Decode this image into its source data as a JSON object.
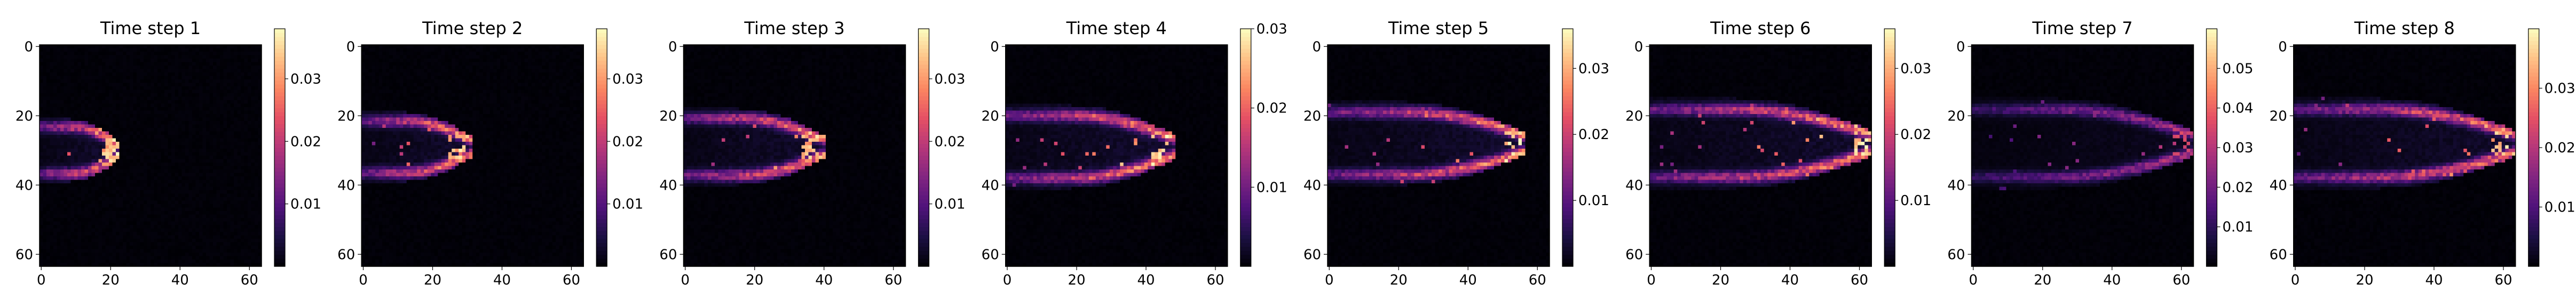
{
  "figure": {
    "background": "#ffffff",
    "colormap": "magma"
  },
  "chart_data": [
    {
      "type": "heatmap",
      "title": "Time step 1",
      "grid_size": [
        64,
        64
      ],
      "xlim": [
        0,
        63
      ],
      "ylim": [
        63,
        0
      ],
      "xticks": [
        "0",
        "20",
        "40",
        "60"
      ],
      "yticks": [
        "0",
        "20",
        "40",
        "60"
      ],
      "colorbar_range": [
        0,
        0.038
      ],
      "colorbar_ticks": [
        "0.01",
        "0.02",
        "0.03"
      ],
      "colorbar_tick_values": [
        0.01,
        0.02,
        0.03
      ],
      "plume": {
        "center_row": 30,
        "tip_col": 22,
        "half_width": 8,
        "peak": 0.036,
        "peak_col": 20
      },
      "grid": false,
      "legend": "none"
    },
    {
      "type": "heatmap",
      "title": "Time step 2",
      "grid_size": [
        64,
        64
      ],
      "xlim": [
        0,
        63
      ],
      "ylim": [
        63,
        0
      ],
      "xticks": [
        "0",
        "20",
        "40",
        "60"
      ],
      "yticks": [
        "0",
        "20",
        "40",
        "60"
      ],
      "colorbar_range": [
        0,
        0.038
      ],
      "colorbar_ticks": [
        "0.01",
        "0.02",
        "0.03"
      ],
      "colorbar_tick_values": [
        0.01,
        0.02,
        0.03
      ],
      "plume": {
        "center_row": 29,
        "tip_col": 31,
        "half_width": 9,
        "peak": 0.036,
        "peak_col": 27
      },
      "grid": false,
      "legend": "none"
    },
    {
      "type": "heatmap",
      "title": "Time step 3",
      "grid_size": [
        64,
        64
      ],
      "xlim": [
        0,
        63
      ],
      "ylim": [
        63,
        0
      ],
      "xticks": [
        "0",
        "20",
        "40",
        "60"
      ],
      "yticks": [
        "0",
        "20",
        "40",
        "60"
      ],
      "colorbar_range": [
        0,
        0.038
      ],
      "colorbar_ticks": [
        "0.01",
        "0.02",
        "0.03"
      ],
      "colorbar_tick_values": [
        0.01,
        0.02,
        0.03
      ],
      "plume": {
        "center_row": 29,
        "tip_col": 40,
        "half_width": 10,
        "peak": 0.036,
        "peak_col": 36
      },
      "grid": false,
      "legend": "none"
    },
    {
      "type": "heatmap",
      "title": "Time step 4",
      "grid_size": [
        64,
        64
      ],
      "xlim": [
        0,
        63
      ],
      "ylim": [
        63,
        0
      ],
      "xticks": [
        "0",
        "20",
        "40",
        "60"
      ],
      "yticks": [
        "0",
        "20",
        "40",
        "60"
      ],
      "colorbar_range": [
        0,
        0.03
      ],
      "colorbar_ticks": [
        "0.01",
        "0.02",
        "0.03"
      ],
      "colorbar_tick_values": [
        0.01,
        0.02,
        0.03
      ],
      "plume": {
        "center_row": 29,
        "tip_col": 48,
        "half_width": 11,
        "peak": 0.03,
        "peak_col": 44
      },
      "grid": false,
      "legend": "none"
    },
    {
      "type": "heatmap",
      "title": "Time step 5",
      "grid_size": [
        64,
        64
      ],
      "xlim": [
        0,
        63
      ],
      "ylim": [
        63,
        0
      ],
      "xticks": [
        "0",
        "20",
        "40",
        "60"
      ],
      "yticks": [
        "0",
        "20",
        "40",
        "60"
      ],
      "colorbar_range": [
        0,
        0.036
      ],
      "colorbar_ticks": [
        "0.01",
        "0.02",
        "0.03"
      ],
      "colorbar_tick_values": [
        0.01,
        0.02,
        0.03
      ],
      "plume": {
        "center_row": 28,
        "tip_col": 56,
        "half_width": 11,
        "peak": 0.034,
        "peak_col": 53
      },
      "grid": false,
      "legend": "none"
    },
    {
      "type": "heatmap",
      "title": "Time step 6",
      "grid_size": [
        64,
        64
      ],
      "xlim": [
        0,
        63
      ],
      "ylim": [
        63,
        0
      ],
      "xticks": [
        "0",
        "20",
        "40",
        "60"
      ],
      "yticks": [
        "0",
        "20",
        "40",
        "60"
      ],
      "colorbar_range": [
        0,
        0.036
      ],
      "colorbar_ticks": [
        "0.01",
        "0.02",
        "0.03"
      ],
      "colorbar_tick_values": [
        0.01,
        0.02,
        0.03
      ],
      "plume": {
        "center_row": 28,
        "tip_col": 63,
        "half_width": 12,
        "peak": 0.034,
        "peak_col": 61
      },
      "grid": false,
      "legend": "none"
    },
    {
      "type": "heatmap",
      "title": "Time step 7",
      "grid_size": [
        64,
        64
      ],
      "xlim": [
        0,
        63
      ],
      "ylim": [
        63,
        0
      ],
      "xticks": [
        "0",
        "20",
        "40",
        "60"
      ],
      "yticks": [
        "0",
        "20",
        "40",
        "60"
      ],
      "colorbar_range": [
        0,
        0.06
      ],
      "colorbar_ticks": [
        "0.01",
        "0.02",
        "0.03",
        "0.04",
        "0.05"
      ],
      "colorbar_tick_values": [
        0.01,
        0.02,
        0.03,
        0.04,
        0.05
      ],
      "plume": {
        "center_row": 28,
        "tip_col": 63,
        "half_width": 12,
        "peak": 0.035,
        "peak_col": 60
      },
      "grid": false,
      "legend": "none"
    },
    {
      "type": "heatmap",
      "title": "Time step 8",
      "grid_size": [
        64,
        64
      ],
      "xlim": [
        0,
        63
      ],
      "ylim": [
        63,
        0
      ],
      "xticks": [
        "0",
        "20",
        "40",
        "60"
      ],
      "yticks": [
        "0",
        "20",
        "40",
        "60"
      ],
      "colorbar_range": [
        0,
        0.04
      ],
      "colorbar_ticks": [
        "0.01",
        "0.02",
        "0.03"
      ],
      "colorbar_tick_values": [
        0.01,
        0.02,
        0.03
      ],
      "plume": {
        "center_row": 28,
        "tip_col": 63,
        "half_width": 12,
        "peak": 0.036,
        "peak_col": 59
      },
      "grid": false,
      "legend": "none"
    }
  ]
}
